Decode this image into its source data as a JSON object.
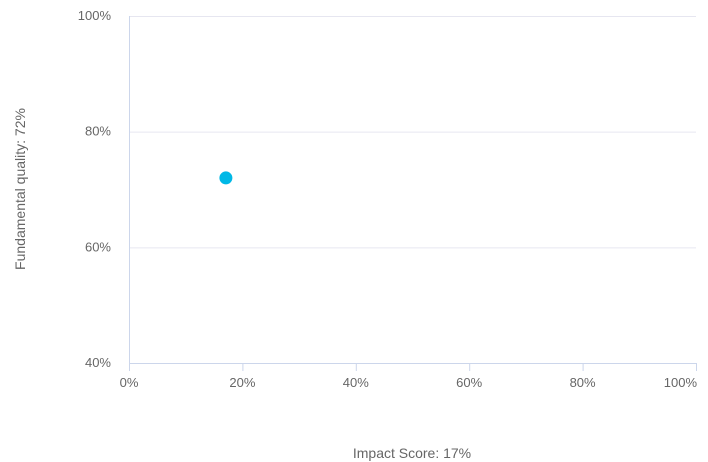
{
  "chart_data": {
    "type": "scatter",
    "title": "",
    "xlabel": "Impact Score: 17%",
    "ylabel": "Fundamental quality: 72%",
    "xlim": [
      0,
      100
    ],
    "ylim": [
      40,
      100
    ],
    "x_ticks": [
      0,
      20,
      40,
      60,
      80,
      100
    ],
    "y_ticks": [
      40,
      60,
      80,
      100
    ],
    "x_tick_labels": [
      "0%",
      "20%",
      "40%",
      "60%",
      "80%",
      "100%"
    ],
    "y_tick_labels": [
      "40%",
      "60%",
      "80%",
      "100%"
    ],
    "grid": "horizontal",
    "legend": "none",
    "points": [
      {
        "x": 17,
        "y": 72
      }
    ],
    "colors": {
      "point": "#00b8e6",
      "grid": "#e6e6f0",
      "axis": "#ccd6eb",
      "text": "#666666"
    }
  }
}
